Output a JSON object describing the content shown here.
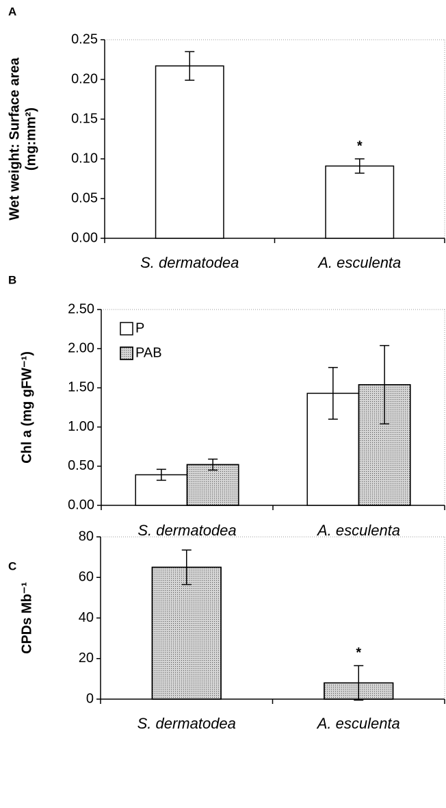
{
  "chart_data": [
    {
      "type": "bar",
      "panel_label": "A",
      "ylabel": [
        "Wet weight: Surface area",
        "(mg:mm²)"
      ],
      "categories": [
        "S. dermatodea",
        "A. esculenta"
      ],
      "series": [
        {
          "color": "#ffffff",
          "values": [
            0.217,
            0.091
          ],
          "errors": [
            0.018,
            0.009
          ],
          "annotations": [
            null,
            "*"
          ]
        }
      ],
      "ylim": [
        0,
        0.25
      ],
      "yticks": [
        {
          "value": 0,
          "label": "0.00"
        },
        {
          "value": 0.05,
          "label": "0.05"
        },
        {
          "value": 0.1,
          "label": "0.10"
        },
        {
          "value": 0.15,
          "label": "0.15"
        },
        {
          "value": 0.2,
          "label": "0.20"
        },
        {
          "value": 0.25,
          "label": "0.25"
        }
      ]
    },
    {
      "type": "bar",
      "panel_label": "B",
      "ylabel": "Chl a (mg gFW⁻¹)",
      "categories": [
        "S. dermatodea",
        "A. esculenta"
      ],
      "series": [
        {
          "name": "P",
          "color": "#ffffff",
          "values": [
            0.39,
            1.43
          ],
          "errors": [
            0.07,
            0.33
          ]
        },
        {
          "name": "PAB",
          "color": "#d6d6d6",
          "values": [
            0.52,
            1.54
          ],
          "errors": [
            0.07,
            0.5
          ]
        }
      ],
      "legend": "upper left",
      "ylim": [
        0,
        2.5
      ],
      "yticks": [
        {
          "value": 0,
          "label": "0.00"
        },
        {
          "value": 0.5,
          "label": "0.50"
        },
        {
          "value": 1,
          "label": "1.00"
        },
        {
          "value": 1.5,
          "label": "1.50"
        },
        {
          "value": 2,
          "label": "2.00"
        },
        {
          "value": 2.5,
          "label": "2.50"
        }
      ]
    },
    {
      "type": "bar",
      "panel_label": "C",
      "ylabel": "CPDs Mb⁻¹",
      "categories": [
        "S. dermatodea",
        "A. esculenta"
      ],
      "series": [
        {
          "color": "#d6d6d6",
          "values": [
            65,
            8
          ],
          "errors": [
            8.5,
            8.5
          ],
          "annotations": [
            null,
            "*"
          ]
        }
      ],
      "ylim": [
        0,
        80
      ],
      "yticks": [
        0,
        20,
        40,
        60,
        80
      ]
    }
  ]
}
